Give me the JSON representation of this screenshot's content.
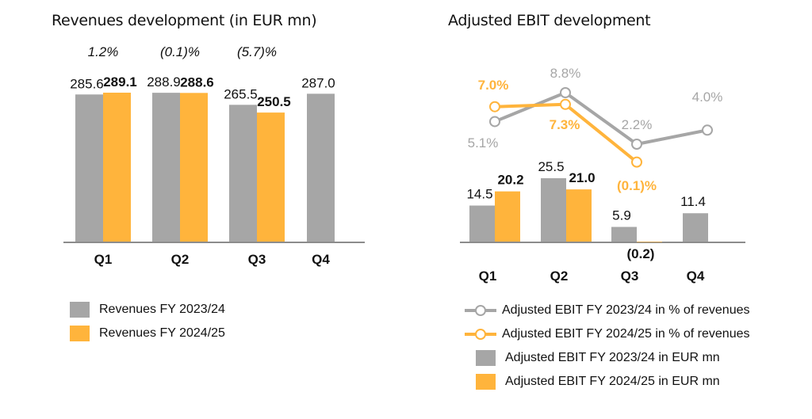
{
  "colors": {
    "prev": "#A6A6A6",
    "curr": "#FFB43C",
    "axis": "#8C8C8C",
    "text": "#111111"
  },
  "chart_data": [
    {
      "type": "bar",
      "title": "Revenues development (in EUR mn)",
      "categories": [
        "Q1",
        "Q2",
        "Q3",
        "Q4"
      ],
      "series": [
        {
          "name": "Revenues FY 2023/24",
          "values": [
            285.6,
            288.9,
            265.5,
            287.0
          ],
          "labels": [
            "285.6",
            "288.9",
            "265.5",
            "287.0"
          ]
        },
        {
          "name": "Revenues FY 2024/25",
          "values": [
            289.1,
            288.6,
            250.5,
            null
          ],
          "labels": [
            "289.1",
            "288.6",
            "250.5",
            ""
          ]
        }
      ],
      "growth_labels": [
        "1.2%",
        "(0.1)%",
        "(5.7)%",
        ""
      ],
      "ylim": [
        0,
        300
      ],
      "grid": false,
      "legend_position": "bottom-left"
    },
    {
      "type": "bar+line",
      "title": "Adjusted EBIT development",
      "categories": [
        "Q1",
        "Q2",
        "Q3",
        "Q4"
      ],
      "bar_series": [
        {
          "name": "Adjusted EBIT FY 2023/24 in EUR mn",
          "values": [
            14.5,
            25.5,
            5.9,
            11.4
          ],
          "labels": [
            "14.5",
            "25.5",
            "5.9",
            "11.4"
          ]
        },
        {
          "name": "Adjusted EBIT FY 2024/25 in EUR mn",
          "values": [
            20.2,
            21.0,
            -0.2,
            null
          ],
          "labels": [
            "20.2",
            "21.0",
            "(0.2)",
            ""
          ]
        }
      ],
      "line_series": [
        {
          "name": "Adjusted EBIT FY 2023/24 in % of revenues",
          "values": [
            5.1,
            8.8,
            2.2,
            4.0
          ],
          "labels": [
            "5.1%",
            "8.8%",
            "2.2%",
            "4.0%"
          ]
        },
        {
          "name": "Adjusted EBIT FY 2024/25 in % of revenues",
          "values": [
            7.0,
            7.3,
            -0.1,
            null
          ],
          "labels": [
            "7.0%",
            "7.3%",
            "(0.1)%",
            ""
          ]
        }
      ],
      "ylim_bars": [
        0,
        30
      ],
      "grid": false,
      "legend_position": "bottom-right"
    }
  ]
}
